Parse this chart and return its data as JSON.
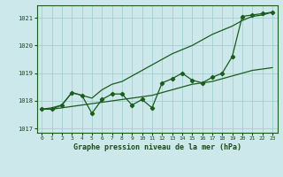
{
  "title": "Graphe pression niveau de la mer (hPa)",
  "background_color": "#cce8ea",
  "grid_color": "#99cccc",
  "line_color": "#1a5c1a",
  "x_values": [
    0,
    1,
    2,
    3,
    4,
    5,
    6,
    7,
    8,
    9,
    10,
    11,
    12,
    13,
    14,
    15,
    16,
    17,
    18,
    19,
    20,
    21,
    22,
    23
  ],
  "y_jagged": [
    1017.7,
    1017.7,
    1017.85,
    1018.3,
    1018.2,
    1017.55,
    1018.05,
    1018.25,
    1018.25,
    1017.85,
    1018.05,
    1017.75,
    1018.65,
    1018.8,
    1019.0,
    1018.75,
    1018.65,
    1018.85,
    1019.0,
    1019.6,
    1021.05,
    1021.1,
    1021.15,
    1021.2
  ],
  "y_upper": [
    1017.7,
    1017.75,
    1017.85,
    1018.3,
    1018.2,
    1018.1,
    1018.4,
    1018.6,
    1018.7,
    1018.9,
    1019.1,
    1019.3,
    1019.5,
    1019.7,
    1019.85,
    1020.0,
    1020.2,
    1020.4,
    1020.55,
    1020.7,
    1020.9,
    1021.05,
    1021.1,
    1021.2
  ],
  "y_lower": [
    1017.7,
    1017.7,
    1017.75,
    1017.8,
    1017.85,
    1017.9,
    1017.95,
    1018.0,
    1018.05,
    1018.1,
    1018.15,
    1018.2,
    1018.3,
    1018.4,
    1018.5,
    1018.6,
    1018.65,
    1018.7,
    1018.8,
    1018.9,
    1019.0,
    1019.1,
    1019.15,
    1019.2
  ],
  "ylim": [
    1016.85,
    1021.45
  ],
  "xlim": [
    -0.5,
    23.5
  ],
  "yticks": [
    1017,
    1018,
    1019,
    1020,
    1021
  ],
  "xticks": [
    0,
    1,
    2,
    3,
    4,
    5,
    6,
    7,
    8,
    9,
    10,
    11,
    12,
    13,
    14,
    15,
    16,
    17,
    18,
    19,
    20,
    21,
    22,
    23
  ]
}
